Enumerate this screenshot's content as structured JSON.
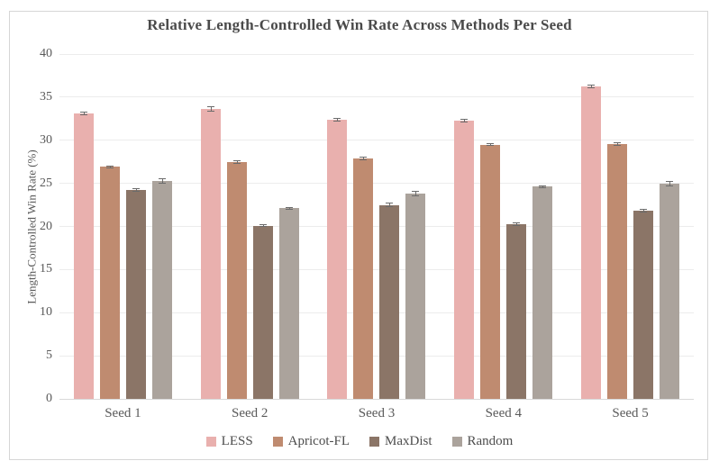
{
  "figure": {
    "title": "Relative Length-Controlled Win Rate Across Methods Per Seed",
    "ylabel": "Length-Controlled Win Rate (%)"
  },
  "chart_data": {
    "type": "bar",
    "title": "Relative Length-Controlled Win Rate Across Methods Per Seed",
    "xlabel": "",
    "ylabel": "Length-Controlled Win Rate (%)",
    "categories": [
      "Seed 1",
      "Seed 2",
      "Seed 3",
      "Seed 4",
      "Seed 5"
    ],
    "series": [
      {
        "name": "LESS",
        "color": "#e9b0ae",
        "values": [
          33.1,
          33.6,
          32.4,
          32.3,
          36.2
        ],
        "errors": [
          0.2,
          0.3,
          0.2,
          0.2,
          0.2
        ]
      },
      {
        "name": "Apricot-FL",
        "color": "#bf8b70",
        "values": [
          26.9,
          27.5,
          27.9,
          29.5,
          29.6
        ],
        "errors": [
          0.2,
          0.2,
          0.2,
          0.2,
          0.2
        ]
      },
      {
        "name": "MaxDist",
        "color": "#8b7567",
        "values": [
          24.2,
          20.1,
          22.5,
          20.3,
          21.8
        ],
        "errors": [
          0.2,
          0.2,
          0.3,
          0.2,
          0.2
        ]
      },
      {
        "name": "Random",
        "color": "#aba39c",
        "values": [
          25.3,
          22.1,
          23.8,
          24.6,
          25.0
        ],
        "errors": [
          0.3,
          0.2,
          0.3,
          0.2,
          0.3
        ]
      }
    ],
    "ylim": [
      0,
      40
    ],
    "ytick_step": 5,
    "grid": true,
    "legend_position": "bottom"
  },
  "colors": {
    "grid": "#ececec",
    "baseline": "#d9d9d9",
    "axis_text": "#595959",
    "title_text": "#4a4a4a",
    "frame_border": "#d6d6d6",
    "error_bar": "#6b6b6b"
  }
}
